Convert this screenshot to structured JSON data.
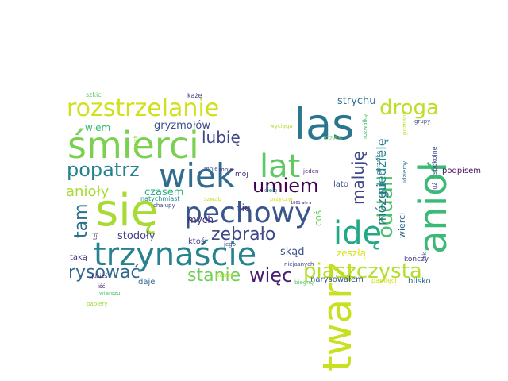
{
  "words": [
    {
      "text": "się",
      "color": "#a7db33"
    },
    {
      "text": "twarz",
      "color": "#c8e020"
    },
    {
      "text": "anioł",
      "color": "#3aba76"
    },
    {
      "text": "śmierci",
      "color": "#7ad151"
    },
    {
      "text": "las",
      "color": "#2a768e"
    },
    {
      "text": "rozstrzelanie",
      "color": "#d0e11c"
    },
    {
      "text": "trzynaście",
      "color": "#26828e"
    },
    {
      "text": "pechowy",
      "color": "#39568c"
    },
    {
      "text": "wiek",
      "color": "#2f6c8e"
    },
    {
      "text": "idę",
      "color": "#22a884"
    },
    {
      "text": "lat",
      "color": "#5ec962"
    },
    {
      "text": "piaszczysta",
      "color": "#b5de2b"
    },
    {
      "text": "droga",
      "color": "#bddf26"
    },
    {
      "text": "oddali",
      "color": "#4ac16d"
    },
    {
      "text": "popatrz",
      "color": "#26828e"
    },
    {
      "text": "umiem",
      "color": "#440154"
    },
    {
      "text": "zebrało",
      "color": "#3e4a89"
    },
    {
      "text": "stanie",
      "color": "#70cf57"
    },
    {
      "text": "więc",
      "color": "#481f70"
    },
    {
      "text": "rysować",
      "color": "#31688e"
    },
    {
      "text": "tam",
      "color": "#2d708e"
    },
    {
      "text": "anioły",
      "color": "#a8db34"
    },
    {
      "text": "maluję",
      "color": "#3f4788"
    },
    {
      "text": "lubię",
      "color": "#404688"
    },
    {
      "text": "mózgu",
      "color": "#2e6e8e"
    },
    {
      "text": "niedzielę",
      "color": "#24868e"
    },
    {
      "text": "gryzmołów",
      "color": "#3d4e8a"
    },
    {
      "text": "strychu",
      "color": "#2c728e"
    },
    {
      "text": "wiem",
      "color": "#37b878"
    },
    {
      "text": "stodoły",
      "color": "#414287"
    },
    {
      "text": "czasem",
      "color": "#29af7f"
    },
    {
      "text": "skąd",
      "color": "#3b528b"
    },
    {
      "text": "mych",
      "color": "#472c7a"
    },
    {
      "text": "zeszłą",
      "color": "#d8e219"
    },
    {
      "text": "nie",
      "color": "#46307e"
    },
    {
      "text": "coś",
      "color": "#6ccd5a"
    },
    {
      "text": "podpisem",
      "color": "#471063"
    },
    {
      "text": "lato",
      "color": "#3b528b"
    },
    {
      "text": "wierci",
      "color": "#31688e"
    },
    {
      "text": "narysowałem",
      "color": "#39558c"
    },
    {
      "text": "blisko",
      "color": "#2d718e"
    },
    {
      "text": "pamięci",
      "color": "#d0e11c"
    },
    {
      "text": "kończy",
      "color": "#443a83"
    },
    {
      "text": "daje",
      "color": "#33638d"
    },
    {
      "text": "taką",
      "color": "#46327e"
    },
    {
      "text": "ktoś",
      "color": "#423f85"
    },
    {
      "text": "czas",
      "color": "#7fd34e"
    },
    {
      "text": "jeden",
      "color": "#482576"
    },
    {
      "text": "mnie",
      "color": "#472d7b"
    },
    {
      "text": "mój",
      "color": "#482878"
    },
    {
      "text": "szkic",
      "color": "#5cc863"
    },
    {
      "text": "każe",
      "color": "#414487"
    },
    {
      "text": "natychmiast",
      "color": "#26828e"
    },
    {
      "text": "chałupy",
      "color": "#3e4c8a"
    },
    {
      "text": "gdzieś",
      "color": "#471365"
    },
    {
      "text": "patrzę",
      "color": "#c2df23"
    },
    {
      "text": "iść",
      "color": "#481769"
    },
    {
      "text": "wierszu",
      "color": "#4ec36b"
    },
    {
      "text": "papiery",
      "color": "#9dd93b"
    },
    {
      "text": "niejasnych",
      "color": "#404588"
    },
    {
      "text": "biegnę",
      "color": "#52c569"
    },
    {
      "text": "jego",
      "color": "#3b518b"
    },
    {
      "text": "cielę",
      "color": "#25858e"
    },
    {
      "text": "przyczyn",
      "color": "#d5e21a"
    },
    {
      "text": "szwab",
      "color": "#c5e021"
    },
    {
      "text": "mnie",
      "color": "#3b528b"
    },
    {
      "text": "wyciąga",
      "color": "#b2dd2d"
    },
    {
      "text": "grupy",
      "color": "#3c4f8a"
    },
    {
      "text": "rozwałkę",
      "color": "#46c06f"
    },
    {
      "text": "gorzałkę",
      "color": "#2a778e"
    },
    {
      "text": "poznaną",
      "color": "#b8de29"
    },
    {
      "text": "już",
      "color": "#3f4889"
    },
    {
      "text": "spokojne",
      "color": "#3e4c8a"
    },
    {
      "text": "idziemy",
      "color": "#2c738e"
    },
    {
      "text": "jak",
      "color": "#3d4d8a"
    },
    {
      "text": "tej",
      "color": "#471164"
    },
    {
      "text": "strych",
      "color": "#a0da39"
    },
    {
      "text": "1861 ale a",
      "color": "#482677"
    }
  ]
}
